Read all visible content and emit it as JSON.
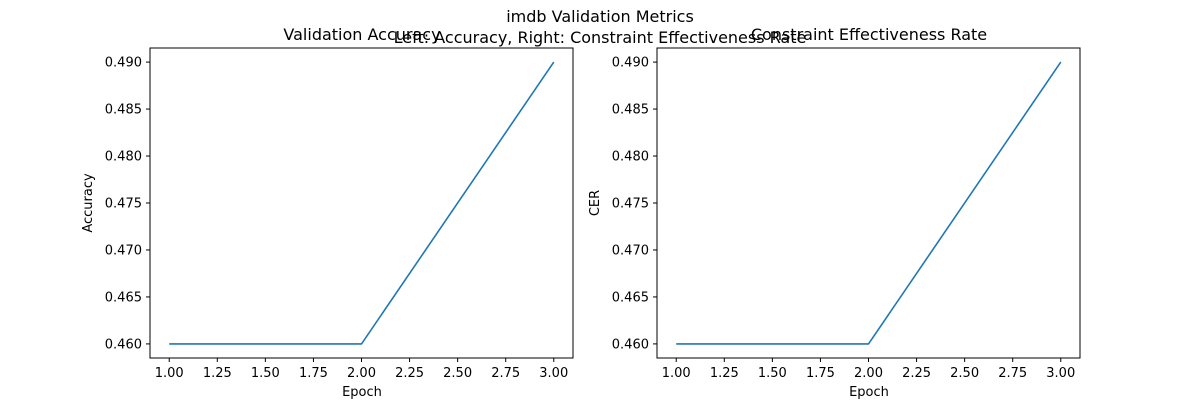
{
  "figure": {
    "title_line1": "imdb Validation Metrics",
    "title_line2": "Left: Accuracy, Right: Constraint Effectiveness Rate"
  },
  "colors": {
    "series": "#1f77b4",
    "background": "#ffffff",
    "axes": "#000000"
  },
  "chart_data": [
    {
      "type": "line",
      "title": "Validation Accuracy",
      "xlabel": "Epoch",
      "ylabel": "Accuracy",
      "x": [
        1,
        2,
        3
      ],
      "series": [
        {
          "values": [
            0.46,
            0.46,
            0.49
          ]
        }
      ],
      "xlim": [
        0.9,
        3.1
      ],
      "ylim": [
        0.4585,
        0.4915
      ],
      "xticks": [
        "1.00",
        "1.25",
        "1.50",
        "1.75",
        "2.00",
        "2.25",
        "2.50",
        "2.75",
        "3.00"
      ],
      "yticks": [
        "0.460",
        "0.465",
        "0.470",
        "0.475",
        "0.480",
        "0.485",
        "0.490"
      ],
      "grid": false,
      "legend": "none"
    },
    {
      "type": "line",
      "title": "Constraint Effectiveness Rate",
      "xlabel": "Epoch",
      "ylabel": "CER",
      "x": [
        1,
        2,
        3
      ],
      "series": [
        {
          "values": [
            0.46,
            0.46,
            0.49
          ]
        }
      ],
      "xlim": [
        0.9,
        3.1
      ],
      "ylim": [
        0.4585,
        0.4915
      ],
      "xticks": [
        "1.00",
        "1.25",
        "1.50",
        "1.75",
        "2.00",
        "2.25",
        "2.50",
        "2.75",
        "3.00"
      ],
      "yticks": [
        "0.460",
        "0.465",
        "0.470",
        "0.475",
        "0.480",
        "0.485",
        "0.490"
      ],
      "grid": false,
      "legend": "none"
    }
  ]
}
